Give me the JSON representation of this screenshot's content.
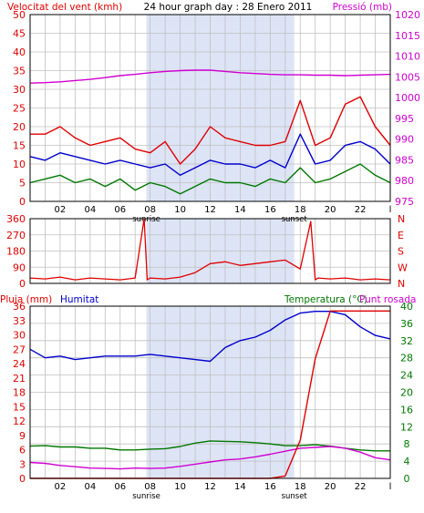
{
  "title": "24 hour graph day : 28 Enero 2011",
  "colors": {
    "red": "#e00000",
    "magenta": "#d000d0",
    "blue": "#0000cc",
    "green": "#007800",
    "grid": "#c0c0c0",
    "sky": "#dde4f6"
  },
  "hour_labels": [
    "02",
    "04",
    "06",
    "08",
    "10",
    "12",
    "14",
    "16",
    "18",
    "20",
    "22"
  ],
  "end_tick": "l",
  "sunrise_label": "sunrise",
  "sunset_label": "sunset",
  "chart_data": [
    {
      "id": "wind",
      "type": "line",
      "ylabel_left": "Velocitat del vent (kmh)",
      "ylabel_right": "Pressió (mb)",
      "ylim": [
        0,
        50
      ],
      "yticks": [
        0,
        5,
        10,
        15,
        20,
        25,
        30,
        35,
        40,
        45,
        50
      ],
      "y2lim": [
        975,
        1020
      ],
      "y2ticks": [
        975,
        980,
        985,
        990,
        995,
        1000,
        1005,
        1010,
        1015,
        1020
      ],
      "x_hours": [
        0,
        1,
        2,
        3,
        4,
        5,
        6,
        7,
        8,
        9,
        10,
        11,
        12,
        13,
        14,
        15,
        16,
        17,
        18,
        19,
        20,
        21,
        22,
        23,
        24
      ],
      "series": [
        {
          "color": "red",
          "axis": "left",
          "values": [
            18,
            18,
            20,
            17,
            15,
            16,
            17,
            14,
            13,
            16,
            10,
            14,
            20,
            17,
            16,
            15,
            15,
            16,
            27,
            15,
            17,
            26,
            28,
            20,
            15
          ]
        },
        {
          "color": "blue",
          "axis": "left",
          "values": [
            12,
            11,
            13,
            12,
            11,
            10,
            11,
            10,
            9,
            10,
            7,
            9,
            11,
            10,
            10,
            9,
            11,
            9,
            18,
            10,
            11,
            15,
            16,
            14,
            10
          ]
        },
        {
          "color": "green",
          "axis": "left",
          "values": [
            5,
            6,
            7,
            5,
            6,
            4,
            6,
            3,
            5,
            4,
            2,
            4,
            6,
            5,
            5,
            4,
            6,
            5,
            9,
            5,
            6,
            8,
            10,
            7,
            5
          ]
        },
        {
          "color": "magenta",
          "axis": "right",
          "values": [
            1003.5,
            1003.6,
            1003.8,
            1004.1,
            1004.4,
            1004.8,
            1005.3,
            1005.6,
            1006.0,
            1006.3,
            1006.5,
            1006.6,
            1006.6,
            1006.3,
            1006.0,
            1005.8,
            1005.6,
            1005.5,
            1005.5,
            1005.4,
            1005.4,
            1005.3,
            1005.4,
            1005.5,
            1005.6
          ]
        }
      ]
    },
    {
      "id": "direction",
      "type": "line",
      "ylim": [
        0,
        360
      ],
      "yticks": [
        0,
        90,
        180,
        270,
        360
      ],
      "right_labels": [
        "N",
        "W",
        "S",
        "E",
        "N"
      ],
      "x_hours": [
        0,
        1,
        2,
        3,
        4,
        5,
        6,
        7,
        7.6,
        7.8,
        8,
        9,
        10,
        11,
        12,
        13,
        14,
        15,
        16,
        17,
        18,
        18.7,
        19,
        19.2,
        20,
        21,
        22,
        23,
        24
      ],
      "series": [
        {
          "color": "red",
          "values": [
            30,
            25,
            35,
            20,
            30,
            25,
            20,
            30,
            360,
            20,
            30,
            25,
            35,
            60,
            110,
            120,
            100,
            110,
            120,
            130,
            80,
            345,
            20,
            30,
            25,
            30,
            20,
            25,
            20
          ]
        }
      ]
    },
    {
      "id": "rain_humidity_temp",
      "type": "line",
      "ylabel_rain": "Pluja (mm)",
      "ylabel_humidity": "Humitat",
      "ylabel_temp": "Temperatura (°C)",
      "ylabel_dew": "Punt rosada",
      "rain_ticks": [
        0,
        3,
        6,
        9,
        12,
        15,
        18,
        21,
        24,
        27,
        30,
        33,
        36
      ],
      "humidity_ticks": [
        0,
        10,
        20,
        30,
        40,
        50,
        60,
        70,
        80,
        90,
        100
      ],
      "temp_ticks": [
        0,
        4,
        8,
        12,
        16,
        20,
        24,
        28,
        32,
        36,
        40
      ],
      "x_hours": [
        0,
        1,
        2,
        3,
        4,
        5,
        6,
        7,
        8,
        9,
        10,
        11,
        12,
        13,
        14,
        15,
        16,
        17,
        18,
        19,
        20,
        21,
        22,
        23,
        24
      ],
      "series": [
        {
          "name": "Humitat",
          "color": "blue",
          "axis": "humidity",
          "values": [
            75,
            70,
            71,
            69,
            70,
            71,
            71,
            71,
            72,
            71,
            70,
            69,
            68,
            76,
            80,
            82,
            86,
            92,
            96,
            97,
            97,
            95,
            88,
            83,
            81
          ]
        },
        {
          "name": "Temperatura",
          "color": "green",
          "axis": "temp",
          "values": [
            7.5,
            7.6,
            7.3,
            7.3,
            7.0,
            7.0,
            6.6,
            6.6,
            6.8,
            6.9,
            7.4,
            8.2,
            8.7,
            8.6,
            8.5,
            8.3,
            8.0,
            7.6,
            7.6,
            7.8,
            7.5,
            7.0,
            6.6,
            6.4,
            6.4
          ]
        },
        {
          "name": "Punt rosada",
          "color": "magenta",
          "axis": "temp",
          "values": [
            3.7,
            3.5,
            3.0,
            2.7,
            2.4,
            2.3,
            2.2,
            2.4,
            2.3,
            2.4,
            2.8,
            3.3,
            3.8,
            4.3,
            4.5,
            5.0,
            5.6,
            6.3,
            7.0,
            7.2,
            7.4,
            7.0,
            6.1,
            4.8,
            4.3
          ]
        },
        {
          "name": "Pluja",
          "color": "red",
          "axis": "rain",
          "values": [
            0,
            0,
            0,
            0,
            0,
            0,
            0,
            0,
            0,
            0,
            0,
            0,
            0,
            0,
            0,
            0,
            0,
            0.5,
            8,
            25,
            35,
            35,
            35,
            35,
            35
          ]
        }
      ]
    }
  ]
}
